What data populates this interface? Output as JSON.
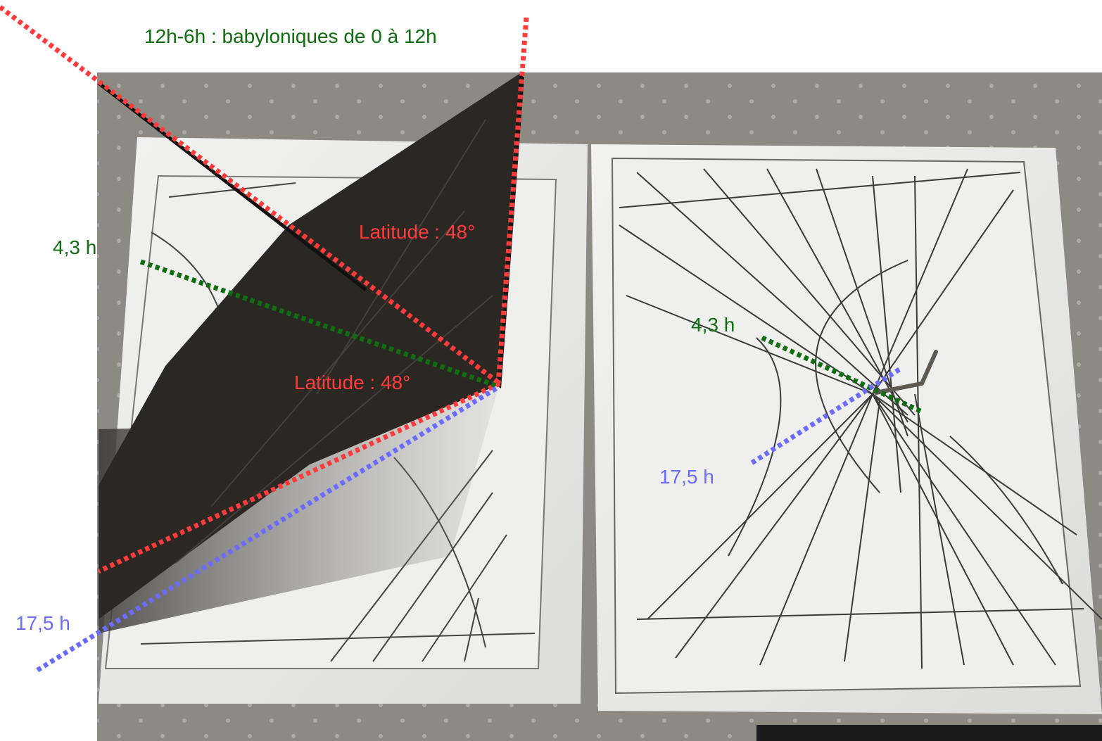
{
  "image": {
    "subject": "photo",
    "colors": {
      "background": "#ffffff",
      "tablecloth": "#8d8a84",
      "paper": "#ededeb",
      "card": "#2b2824",
      "red": "#ff3b3b",
      "green": "#0f6e0f",
      "blue": "#6b6bff"
    }
  },
  "labels": {
    "top_title": "12h-6h : babyloniques de 0 à 12h",
    "latitude_upper": "Latitude : 48°",
    "latitude_lower": "Latitude : 48°",
    "left_green": "4,3 h",
    "right_green": "4,3 h",
    "left_blue": "17,5 h",
    "right_blue": "17,5 h"
  }
}
